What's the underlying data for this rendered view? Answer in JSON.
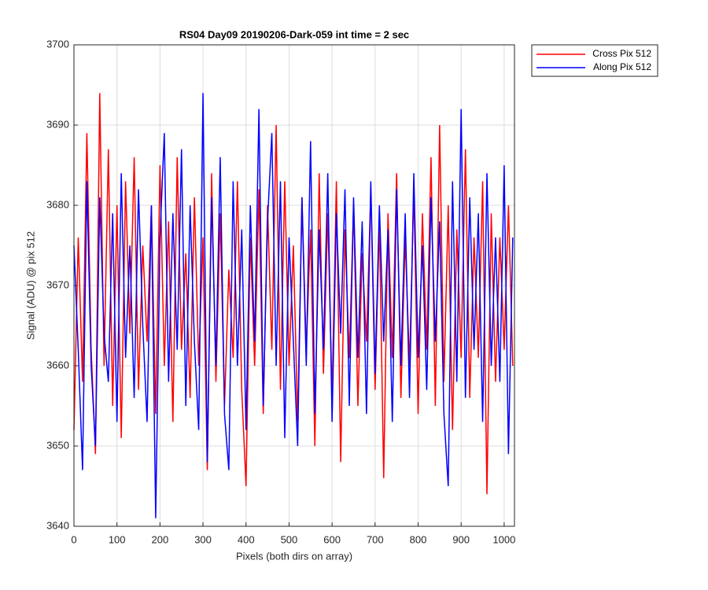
{
  "chart_data": {
    "type": "line",
    "title": "RS04 Day09 20190206-Dark-059 int time = 2 sec",
    "x_label": "Pixels (both dirs on array)",
    "y_label": "Signal (ADU) @ pix 512",
    "x": [
      0,
      10,
      20,
      30,
      40,
      50,
      60,
      70,
      80,
      90,
      100,
      110,
      120,
      130,
      140,
      150,
      160,
      170,
      180,
      190,
      200,
      210,
      220,
      230,
      240,
      250,
      260,
      270,
      280,
      290,
      300,
      310,
      320,
      330,
      340,
      350,
      360,
      370,
      380,
      390,
      400,
      410,
      420,
      430,
      440,
      450,
      460,
      470,
      480,
      490,
      500,
      510,
      520,
      530,
      540,
      550,
      560,
      570,
      580,
      590,
      600,
      610,
      620,
      630,
      640,
      650,
      660,
      670,
      680,
      690,
      700,
      710,
      720,
      730,
      740,
      750,
      760,
      770,
      780,
      790,
      800,
      810,
      820,
      830,
      840,
      850,
      860,
      870,
      880,
      890,
      900,
      910,
      920,
      930,
      940,
      950,
      960,
      970,
      980,
      990,
      1000,
      1010,
      1020
    ],
    "series": [
      {
        "name": "Cross Pix 512",
        "color": "#ff0000",
        "values": [
          3652,
          3676,
          3658,
          3689,
          3662,
          3649,
          3694,
          3660,
          3687,
          3655,
          3680,
          3651,
          3683,
          3664,
          3686,
          3657,
          3675,
          3663,
          3680,
          3654,
          3685,
          3660,
          3678,
          3653,
          3686,
          3662,
          3674,
          3656,
          3681,
          3660,
          3676,
          3647,
          3684,
          3658,
          3679,
          3655,
          3672,
          3661,
          3683,
          3657,
          3645,
          3676,
          3660,
          3682,
          3654,
          3680,
          3662,
          3690,
          3657,
          3683,
          3660,
          3675,
          3653,
          3681,
          3662,
          3677,
          3650,
          3684,
          3659,
          3679,
          3656,
          3683,
          3648,
          3677,
          3661,
          3680,
          3655,
          3674,
          3663,
          3682,
          3657,
          3678,
          3646,
          3679,
          3661,
          3684,
          3656,
          3676,
          3660,
          3682,
          3654,
          3679,
          3662,
          3686,
          3655,
          3690,
          3658,
          3680,
          3652,
          3677,
          3661,
          3687,
          3656,
          3676,
          3661,
          3683,
          3644,
          3679,
          3658,
          3676,
          3662,
          3680,
          3660
        ]
      },
      {
        "name": "Along Pix 512",
        "color": "#0000ff",
        "values": [
          3675,
          3662,
          3647,
          3683,
          3660,
          3650,
          3681,
          3664,
          3658,
          3679,
          3653,
          3684,
          3661,
          3675,
          3656,
          3682,
          3665,
          3653,
          3680,
          3641,
          3676,
          3689,
          3658,
          3679,
          3662,
          3687,
          3655,
          3680,
          3663,
          3652,
          3694,
          3648,
          3681,
          3660,
          3686,
          3654,
          3647,
          3683,
          3660,
          3677,
          3652,
          3680,
          3663,
          3692,
          3655,
          3678,
          3689,
          3660,
          3683,
          3651,
          3676,
          3663,
          3650,
          3681,
          3660,
          3688,
          3654,
          3677,
          3662,
          3684,
          3653,
          3679,
          3664,
          3682,
          3655,
          3681,
          3661,
          3678,
          3654,
          3683,
          3659,
          3680,
          3663,
          3677,
          3653,
          3682,
          3660,
          3679,
          3656,
          3684,
          3661,
          3675,
          3657,
          3681,
          3663,
          3678,
          3654,
          3645,
          3683,
          3658,
          3692,
          3656,
          3681,
          3662,
          3679,
          3653,
          3684,
          3660,
          3676,
          3658,
          3685,
          3649,
          3676
        ]
      }
    ],
    "xlim": [
      0,
      1024
    ],
    "ylim": [
      3640,
      3700
    ],
    "xticks": [
      0,
      100,
      200,
      300,
      400,
      500,
      600,
      700,
      800,
      900,
      1000
    ],
    "yticks": [
      3640,
      3650,
      3660,
      3670,
      3680,
      3690,
      3700
    ],
    "grid": true,
    "legend": "outside-top-right"
  }
}
